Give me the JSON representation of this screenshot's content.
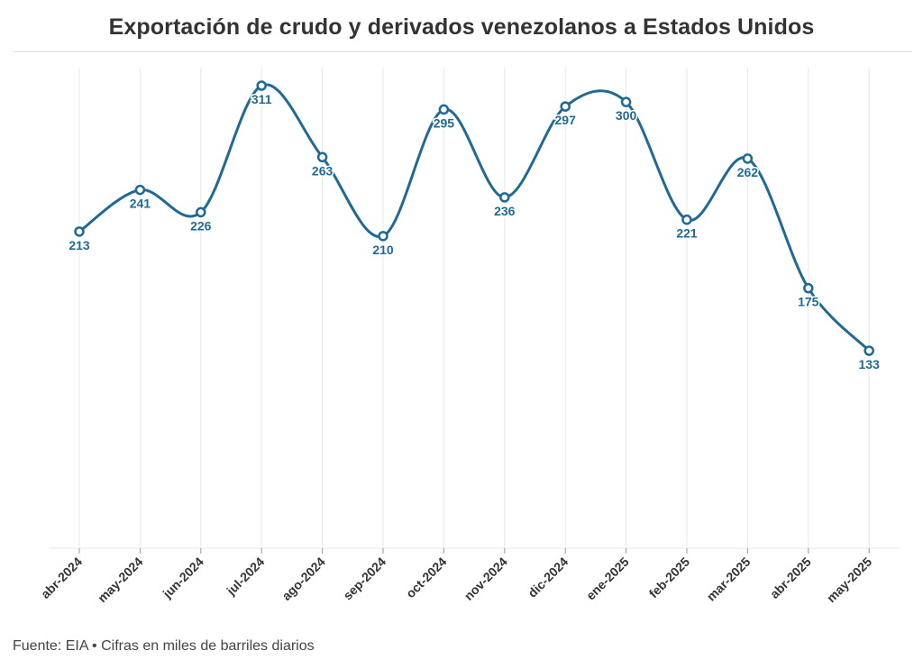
{
  "title": "Exportación de crudo y derivados venezolanos a Estados Unidos",
  "footer": "Fuente: EIA • Cifras en miles de barriles diarios",
  "colors": {
    "line": "#1f6a94",
    "label": "#1f6a94",
    "grid": "#e8e8e8",
    "axis_text": "#333333"
  },
  "chart_data": {
    "type": "line",
    "title": "Exportación de crudo y derivados venezolanos a Estados Unidos",
    "xlabel": "",
    "ylabel": "",
    "categories": [
      "abr-2024",
      "may-2024",
      "jun-2024",
      "jul-2024",
      "ago-2024",
      "sep-2024",
      "oct-2024",
      "nov-2024",
      "dic-2024",
      "ene-2025",
      "feb-2025",
      "mar-2025",
      "abr-2025",
      "may-2025"
    ],
    "series": [
      {
        "values": [
          213,
          241,
          226,
          311,
          263,
          210,
          295,
          236,
          297,
          300,
          221,
          262,
          175,
          133
        ]
      }
    ],
    "ylim": [
      0,
      320
    ],
    "grid": "vertical",
    "legend": "none",
    "data_labels": true
  }
}
